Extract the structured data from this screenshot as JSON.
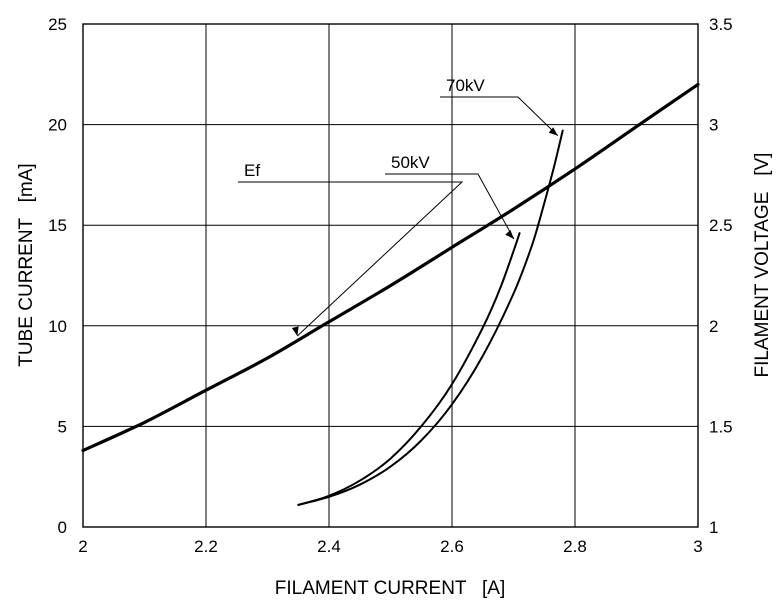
{
  "chart_data": {
    "type": "line",
    "title": "",
    "xlabel": "FILAMENT CURRENT   [A]",
    "ylabel": "TUBE CURRENT   [mA]",
    "y2label": "FILAMENT VOLTAGE   [V]",
    "xlim": [
      2,
      3
    ],
    "ylim": [
      0,
      25
    ],
    "y2lim": [
      1,
      3.5
    ],
    "grid": true,
    "x_ticks": [
      "2",
      "2.2",
      "2.4",
      "2.6",
      "2.8",
      "3"
    ],
    "y_ticks": [
      "0",
      "5",
      "10",
      "15",
      "20",
      "25"
    ],
    "y2_ticks": [
      "1",
      "1.5",
      "2",
      "2.5",
      "3",
      "3.5"
    ],
    "series": [
      {
        "name": "Ef",
        "axis": "right",
        "x": [
          2.0,
          2.1,
          2.2,
          2.3,
          2.4,
          2.5,
          2.6,
          2.7,
          2.8,
          2.9,
          3.0
        ],
        "y": [
          1.38,
          1.52,
          1.68,
          1.84,
          2.02,
          2.2,
          2.39,
          2.58,
          2.78,
          2.99,
          3.2
        ]
      },
      {
        "name": "50kV",
        "axis": "left",
        "x": [
          2.35,
          2.4,
          2.45,
          2.5,
          2.55,
          2.6,
          2.65,
          2.7,
          2.73,
          2.75,
          2.765,
          2.78
        ],
        "y": [
          1.1,
          1.5,
          2.1,
          3.0,
          4.3,
          6.1,
          8.5,
          11.6,
          14.0,
          16.1,
          17.8,
          19.7
        ]
      },
      {
        "name": "70kV",
        "axis": "left",
        "x": [
          2.35,
          2.4,
          2.45,
          2.5,
          2.55,
          2.6,
          2.65,
          2.68,
          2.71
        ],
        "y": [
          1.1,
          1.55,
          2.3,
          3.4,
          5.0,
          7.1,
          9.9,
          12.0,
          14.6
        ]
      }
    ]
  }
}
